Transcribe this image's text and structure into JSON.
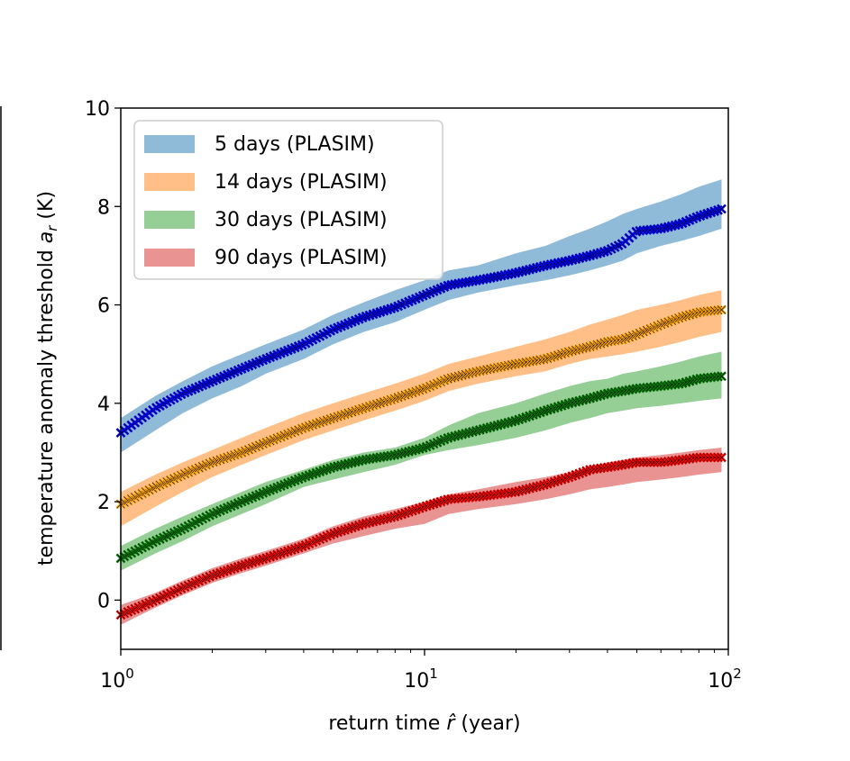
{
  "chart_data": {
    "type": "line",
    "xscale": "log",
    "xlim": [
      1,
      100
    ],
    "ylim": [
      -1,
      10
    ],
    "xlabel_main": "return time ",
    "xlabel_symbol": "r̂",
    "xlabel_unit": " (year)",
    "ylabel_main": "temperature anomaly threshold ",
    "ylabel_symbol": "a",
    "ylabel_sub": "r",
    "ylabel_unit": " (K)",
    "y_ticks": [
      0,
      2,
      4,
      6,
      8,
      10
    ],
    "y_tick_labels": [
      "0",
      "2",
      "4",
      "6",
      "8",
      "10"
    ],
    "x_ticks": [
      1,
      10,
      100
    ],
    "x_tick_base": "10",
    "x_tick_exponents": [
      "0",
      "1",
      "2"
    ],
    "legend_position": "upper-left",
    "series": [
      {
        "name": "5 days (PLASIM)",
        "band_color": "#1f77b4",
        "marker_color": "#0000ff",
        "x": [
          1.0,
          1.3,
          1.6,
          2.0,
          2.5,
          3.0,
          4.0,
          5.0,
          6.3,
          8.0,
          10.0,
          12.0,
          15.0,
          20.0,
          25.0,
          30.0,
          35.0,
          40.0,
          45.0,
          50.0,
          60.0,
          70.0,
          80.0,
          95.0
        ],
        "y": [
          3.4,
          3.9,
          4.2,
          4.45,
          4.7,
          4.9,
          5.2,
          5.5,
          5.75,
          5.95,
          6.2,
          6.4,
          6.5,
          6.65,
          6.8,
          6.9,
          7.0,
          7.1,
          7.25,
          7.5,
          7.55,
          7.65,
          7.8,
          7.95
        ],
        "lower": [
          3.0,
          3.45,
          3.8,
          4.1,
          4.35,
          4.6,
          4.9,
          5.2,
          5.45,
          5.65,
          5.9,
          6.1,
          6.25,
          6.4,
          6.5,
          6.6,
          6.7,
          6.8,
          6.9,
          7.05,
          7.2,
          7.3,
          7.4,
          7.55
        ],
        "upper": [
          3.7,
          4.15,
          4.45,
          4.75,
          5.0,
          5.2,
          5.5,
          5.8,
          6.05,
          6.3,
          6.5,
          6.7,
          6.8,
          7.05,
          7.2,
          7.4,
          7.55,
          7.7,
          7.85,
          7.95,
          8.1,
          8.25,
          8.4,
          8.55
        ]
      },
      {
        "name": "14 days (PLASIM)",
        "band_color": "#ff7f0e",
        "marker_color": "#ffa500",
        "x": [
          1.0,
          1.3,
          1.6,
          2.0,
          2.5,
          3.0,
          4.0,
          5.0,
          6.3,
          8.0,
          10.0,
          12.0,
          15.0,
          20.0,
          25.0,
          30.0,
          35.0,
          40.0,
          45.0,
          50.0,
          60.0,
          70.0,
          80.0,
          95.0
        ],
        "y": [
          1.95,
          2.3,
          2.55,
          2.8,
          3.0,
          3.2,
          3.5,
          3.7,
          3.9,
          4.1,
          4.3,
          4.5,
          4.65,
          4.8,
          4.9,
          5.05,
          5.15,
          5.25,
          5.3,
          5.4,
          5.6,
          5.75,
          5.85,
          5.9
        ],
        "lower": [
          1.5,
          1.9,
          2.2,
          2.5,
          2.75,
          2.95,
          3.25,
          3.45,
          3.65,
          3.85,
          4.05,
          4.25,
          4.4,
          4.55,
          4.65,
          4.8,
          4.9,
          4.95,
          5.0,
          5.05,
          5.15,
          5.25,
          5.35,
          5.45
        ],
        "upper": [
          2.2,
          2.55,
          2.8,
          3.05,
          3.3,
          3.5,
          3.8,
          4.0,
          4.2,
          4.4,
          4.6,
          4.8,
          4.95,
          5.15,
          5.3,
          5.45,
          5.6,
          5.7,
          5.8,
          5.9,
          6.0,
          6.1,
          6.2,
          6.3
        ]
      },
      {
        "name": "30 days (PLASIM)",
        "band_color": "#2ca02c",
        "marker_color": "#008000",
        "x": [
          1.0,
          1.3,
          1.6,
          2.0,
          2.5,
          3.0,
          4.0,
          5.0,
          6.3,
          8.0,
          10.0,
          12.0,
          15.0,
          20.0,
          25.0,
          30.0,
          35.0,
          40.0,
          45.0,
          50.0,
          60.0,
          70.0,
          80.0,
          95.0
        ],
        "y": [
          0.85,
          1.2,
          1.45,
          1.75,
          2.0,
          2.2,
          2.5,
          2.7,
          2.85,
          2.95,
          3.1,
          3.3,
          3.45,
          3.65,
          3.85,
          4.0,
          4.1,
          4.2,
          4.25,
          4.3,
          4.35,
          4.4,
          4.5,
          4.55
        ],
        "lower": [
          0.6,
          0.95,
          1.2,
          1.5,
          1.75,
          1.95,
          2.3,
          2.45,
          2.6,
          2.75,
          2.95,
          3.05,
          3.15,
          3.3,
          3.45,
          3.6,
          3.7,
          3.8,
          3.85,
          3.9,
          3.95,
          4.0,
          4.05,
          4.1
        ],
        "upper": [
          1.1,
          1.45,
          1.7,
          1.95,
          2.2,
          2.4,
          2.65,
          2.85,
          3.0,
          3.1,
          3.3,
          3.55,
          3.8,
          4.0,
          4.2,
          4.35,
          4.45,
          4.5,
          4.6,
          4.65,
          4.75,
          4.85,
          4.95,
          5.05
        ]
      },
      {
        "name": "90 days (PLASIM)",
        "band_color": "#d62728",
        "marker_color": "#ff0000",
        "x": [
          1.0,
          1.3,
          1.6,
          2.0,
          2.5,
          3.0,
          4.0,
          5.0,
          6.3,
          8.0,
          10.0,
          12.0,
          15.0,
          20.0,
          25.0,
          30.0,
          35.0,
          40.0,
          45.0,
          50.0,
          60.0,
          70.0,
          80.0,
          95.0
        ],
        "y": [
          -0.3,
          0.0,
          0.25,
          0.5,
          0.7,
          0.85,
          1.1,
          1.35,
          1.55,
          1.7,
          1.9,
          2.05,
          2.1,
          2.2,
          2.35,
          2.5,
          2.65,
          2.7,
          2.75,
          2.8,
          2.8,
          2.85,
          2.9,
          2.9
        ],
        "lower": [
          -0.5,
          -0.15,
          0.1,
          0.35,
          0.55,
          0.7,
          0.95,
          1.15,
          1.3,
          1.45,
          1.55,
          1.75,
          1.85,
          1.95,
          2.05,
          2.15,
          2.25,
          2.3,
          2.35,
          2.4,
          2.45,
          2.5,
          2.55,
          2.6
        ],
        "upper": [
          -0.1,
          0.15,
          0.4,
          0.65,
          0.85,
          1.0,
          1.25,
          1.5,
          1.7,
          1.85,
          2.0,
          2.15,
          2.25,
          2.4,
          2.5,
          2.6,
          2.7,
          2.8,
          2.85,
          2.9,
          2.95,
          3.0,
          3.05,
          3.1
        ]
      }
    ]
  }
}
